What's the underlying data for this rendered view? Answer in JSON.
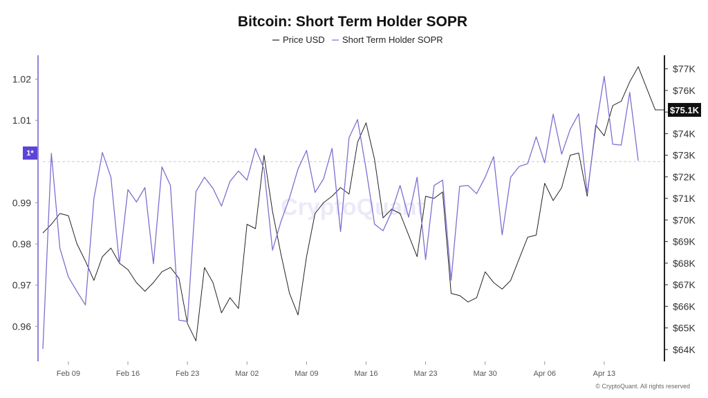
{
  "title": "Bitcoin: Short Term Holder SOPR",
  "legend": [
    {
      "label": "Price USD",
      "color": "#222222"
    },
    {
      "label": "Short Term Holder SOPR",
      "color": "#7b6fd0"
    }
  ],
  "watermark": "CryptoQuant",
  "copyright": "© CryptoQuant. All rights reserved",
  "reference_label": "1*",
  "last_price_label": "$75.1K",
  "colors": {
    "price": "#222222",
    "sopr": "#7b6fd0",
    "reference_tag": "#5b45d6",
    "price_tag": "#111111",
    "left_axis": "#8f82dd",
    "right_axis": "#222222",
    "ref_line": "#c9c9c9"
  },
  "chart_data": {
    "type": "line",
    "title": "Bitcoin: Short Term Holder SOPR",
    "x_start": "2025-02-06",
    "x_end": "2025-04-20",
    "x_ticks": [
      {
        "label": "Feb 09",
        "date": "2025-02-09"
      },
      {
        "label": "Feb 16",
        "date": "2025-02-16"
      },
      {
        "label": "Feb 23",
        "date": "2025-02-23"
      },
      {
        "label": "Mar 02",
        "date": "2025-03-02"
      },
      {
        "label": "Mar 09",
        "date": "2025-03-09"
      },
      {
        "label": "Mar 16",
        "date": "2025-03-16"
      },
      {
        "label": "Mar 23",
        "date": "2025-03-23"
      },
      {
        "label": "Mar 30",
        "date": "2025-03-30"
      },
      {
        "label": "Apr 06",
        "date": "2025-04-06"
      },
      {
        "label": "Apr 13",
        "date": "2025-04-13"
      }
    ],
    "left_axis": {
      "range": [
        0.9515,
        1.0258
      ],
      "ticks": [
        {
          "label": "0.96",
          "value": 0.96
        },
        {
          "label": "0.97",
          "value": 0.97
        },
        {
          "label": "0.98",
          "value": 0.98
        },
        {
          "label": "0.99",
          "value": 0.99
        },
        {
          "label": "1.01",
          "value": 1.01
        },
        {
          "label": "1.02",
          "value": 1.02
        }
      ],
      "reference_value": 1.0
    },
    "right_axis": {
      "range": [
        63450,
        77630
      ],
      "ticks": [
        {
          "label": "$64K",
          "value": 64000
        },
        {
          "label": "$65K",
          "value": 65000
        },
        {
          "label": "$66K",
          "value": 66000
        },
        {
          "label": "$67K",
          "value": 67000
        },
        {
          "label": "$68K",
          "value": 68000
        },
        {
          "label": "$69K",
          "value": 69000
        },
        {
          "label": "$70K",
          "value": 70000
        },
        {
          "label": "$71K",
          "value": 71000
        },
        {
          "label": "$72K",
          "value": 72000
        },
        {
          "label": "$73K",
          "value": 73000
        },
        {
          "label": "$74K",
          "value": 74000
        },
        {
          "label": "$75K",
          "value": 75000
        },
        {
          "label": "$76K",
          "value": 76000
        },
        {
          "label": "$77K",
          "value": 77000
        }
      ],
      "last_price": 75100
    },
    "series": [
      {
        "name": "Price USD",
        "axis": "right",
        "color": "#222222",
        "x": [
          "2025-02-06",
          "2025-02-07",
          "2025-02-08",
          "2025-02-09",
          "2025-02-10",
          "2025-02-11",
          "2025-02-12",
          "2025-02-13",
          "2025-02-14",
          "2025-02-15",
          "2025-02-16",
          "2025-02-17",
          "2025-02-18",
          "2025-02-19",
          "2025-02-20",
          "2025-02-21",
          "2025-02-22",
          "2025-02-23",
          "2025-02-24",
          "2025-02-25",
          "2025-02-26",
          "2025-02-27",
          "2025-02-28",
          "2025-03-01",
          "2025-03-02",
          "2025-03-03",
          "2025-03-04",
          "2025-03-05",
          "2025-03-06",
          "2025-03-07",
          "2025-03-08",
          "2025-03-09",
          "2025-03-10",
          "2025-03-11",
          "2025-03-12",
          "2025-03-13",
          "2025-03-14",
          "2025-03-15",
          "2025-03-16",
          "2025-03-17",
          "2025-03-18",
          "2025-03-19",
          "2025-03-20",
          "2025-03-21",
          "2025-03-22",
          "2025-03-23",
          "2025-03-24",
          "2025-03-25",
          "2025-03-26",
          "2025-03-27",
          "2025-03-28",
          "2025-03-29",
          "2025-03-30",
          "2025-03-31",
          "2025-04-01",
          "2025-04-02",
          "2025-04-03",
          "2025-04-04",
          "2025-04-05",
          "2025-04-06",
          "2025-04-07",
          "2025-04-08",
          "2025-04-09",
          "2025-04-10",
          "2025-04-11",
          "2025-04-12",
          "2025-04-13",
          "2025-04-14",
          "2025-04-15",
          "2025-04-16",
          "2025-04-17",
          "2025-04-18",
          "2025-04-19",
          "2025-04-20"
        ],
        "values": [
          69400,
          69800,
          70300,
          70200,
          68900,
          68100,
          67200,
          68300,
          68700,
          68000,
          67700,
          67100,
          66700,
          67100,
          67600,
          67800,
          67300,
          65200,
          64400,
          67800,
          67100,
          65700,
          66400,
          65900,
          69800,
          69600,
          73000,
          70400,
          68400,
          66600,
          65600,
          68300,
          70300,
          70800,
          71100,
          71500,
          71200,
          73600,
          74500,
          72800,
          70100,
          70500,
          70300,
          69300,
          68300,
          71100,
          71000,
          71300,
          66600,
          66500,
          66200,
          66400,
          67600,
          67100,
          66800,
          67200,
          68200,
          69200,
          69300,
          71700,
          70900,
          71500,
          73000,
          73100,
          71100,
          74400,
          73900,
          75300,
          75500,
          76400,
          77100,
          76100,
          75100,
          75100
        ]
      },
      {
        "name": "Short Term Holder SOPR",
        "axis": "left",
        "color": "#7b6fd0",
        "x": [
          "2025-02-06",
          "2025-02-07",
          "2025-02-08",
          "2025-02-09",
          "2025-02-10",
          "2025-02-11",
          "2025-02-12",
          "2025-02-13",
          "2025-02-14",
          "2025-02-15",
          "2025-02-16",
          "2025-02-17",
          "2025-02-18",
          "2025-02-19",
          "2025-02-20",
          "2025-02-21",
          "2025-02-22",
          "2025-02-23",
          "2025-02-24",
          "2025-02-25",
          "2025-02-26",
          "2025-02-27",
          "2025-02-28",
          "2025-03-01",
          "2025-03-02",
          "2025-03-03",
          "2025-03-04",
          "2025-03-05",
          "2025-03-06",
          "2025-03-07",
          "2025-03-08",
          "2025-03-09",
          "2025-03-10",
          "2025-03-11",
          "2025-03-12",
          "2025-03-13",
          "2025-03-14",
          "2025-03-15",
          "2025-03-16",
          "2025-03-17",
          "2025-03-18",
          "2025-03-19",
          "2025-03-20",
          "2025-03-21",
          "2025-03-22",
          "2025-03-23",
          "2025-03-24",
          "2025-03-25",
          "2025-03-26",
          "2025-03-27",
          "2025-03-28",
          "2025-03-29",
          "2025-03-30",
          "2025-03-31",
          "2025-04-01",
          "2025-04-02",
          "2025-04-03",
          "2025-04-04",
          "2025-04-05",
          "2025-04-06",
          "2025-04-07",
          "2025-04-08",
          "2025-04-09",
          "2025-04-10",
          "2025-04-11",
          "2025-04-12",
          "2025-04-13",
          "2025-04-14",
          "2025-04-15",
          "2025-04-16",
          "2025-04-17",
          "2025-04-18",
          "2025-04-19",
          "2025-04-20"
        ],
        "values": [
          0.9545,
          1.002,
          0.979,
          0.972,
          0.9685,
          0.9652,
          0.991,
          1.0022,
          0.9962,
          0.9752,
          0.9932,
          0.9902,
          0.9937,
          0.9752,
          0.9987,
          0.9942,
          0.9615,
          0.9612,
          0.9927,
          0.9962,
          0.9935,
          0.9892,
          0.9952,
          0.9977,
          0.9955,
          1.0032,
          0.9982,
          0.9785,
          0.9855,
          0.9912,
          0.9982,
          1.0027,
          0.9925,
          0.9958,
          1.0032,
          0.983,
          1.0058,
          1.0102,
          0.9982,
          0.9848,
          0.9832,
          0.9878,
          0.9942,
          0.9865,
          0.9962,
          0.9762,
          0.9942,
          0.9955,
          0.9712,
          0.994,
          0.9942,
          0.9922,
          0.9962,
          1.0012,
          0.9822,
          0.9962,
          0.9988,
          0.9995,
          1.006,
          0.9997,
          1.0115,
          1.0018,
          1.0078,
          1.0116,
          0.9922,
          1.008,
          1.0207,
          1.0042,
          1.004,
          1.0168,
          1.0002,
          null,
          null,
          null
        ]
      }
    ]
  }
}
